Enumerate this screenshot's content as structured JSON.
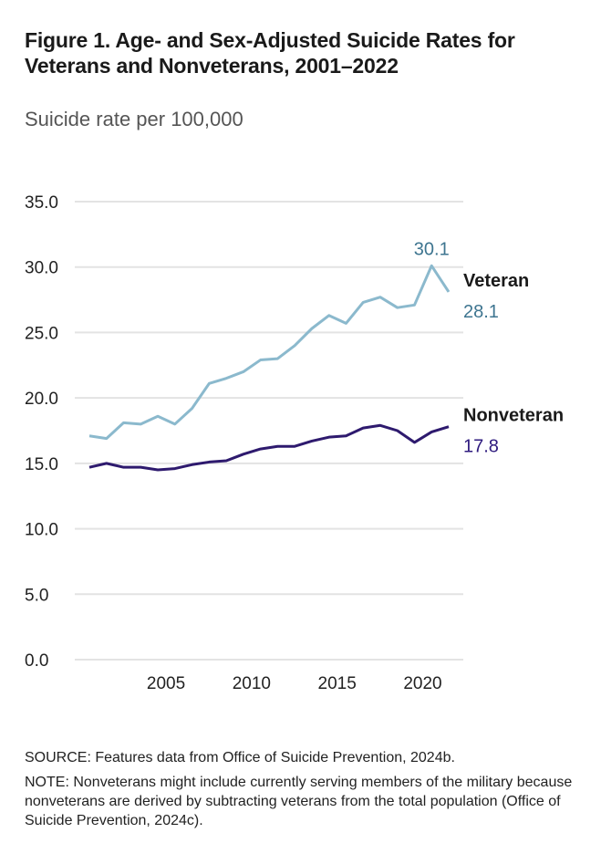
{
  "title_prefix": "Figure 1.",
  "title_rest": " Age- and Sex-Adjusted Suicide Rates for Veterans and Nonveterans, 2001–2022",
  "source": "SOURCE: Features data from Office of Suicide Prevention, 2024b.",
  "note": "NOTE: Nonveterans might include currently serving members of the military because nonveterans are derived by subtracting veterans from the total population (Office of Suicide Prevention, 2024c).",
  "chart_data": {
    "type": "line",
    "title": "Figure 1. Age- and Sex-Adjusted Suicide Rates for Veterans and Nonveterans, 2001–2022",
    "ylabel": "Suicide rate per 100,000",
    "xlabel": "",
    "ylim": [
      0,
      35
    ],
    "yticks": [
      "0.0",
      "5.0",
      "10.0",
      "15.0",
      "20.0",
      "25.0",
      "30.0",
      "35.0"
    ],
    "xticks": [
      2005,
      2010,
      2015,
      2020
    ],
    "grid": true,
    "x": [
      2001,
      2002,
      2003,
      2004,
      2005,
      2006,
      2007,
      2008,
      2009,
      2010,
      2011,
      2012,
      2013,
      2014,
      2015,
      2016,
      2017,
      2018,
      2019,
      2020,
      2021,
      2022
    ],
    "series": [
      {
        "name": "Veteran",
        "color": "#8bb9cd",
        "label_color": "#3e7590",
        "values": [
          17.1,
          16.9,
          18.1,
          18.0,
          18.6,
          18.0,
          19.2,
          21.1,
          21.5,
          22.0,
          22.9,
          23.0,
          24.0,
          25.3,
          26.3,
          25.7,
          27.3,
          27.7,
          26.9,
          27.1,
          30.1,
          28.1
        ],
        "annotations": [
          {
            "x": 2021,
            "text": "30.1"
          }
        ],
        "end_label": "28.1"
      },
      {
        "name": "Nonveteran",
        "color": "#2e1a6e",
        "label_color": "#2e1a7e",
        "values": [
          14.7,
          15.0,
          14.7,
          14.7,
          14.5,
          14.6,
          14.9,
          15.1,
          15.2,
          15.7,
          16.1,
          16.3,
          16.3,
          16.7,
          17.0,
          17.1,
          17.7,
          17.9,
          17.5,
          16.6,
          17.4,
          17.8
        ],
        "annotations": [],
        "end_label": "17.8"
      }
    ]
  }
}
